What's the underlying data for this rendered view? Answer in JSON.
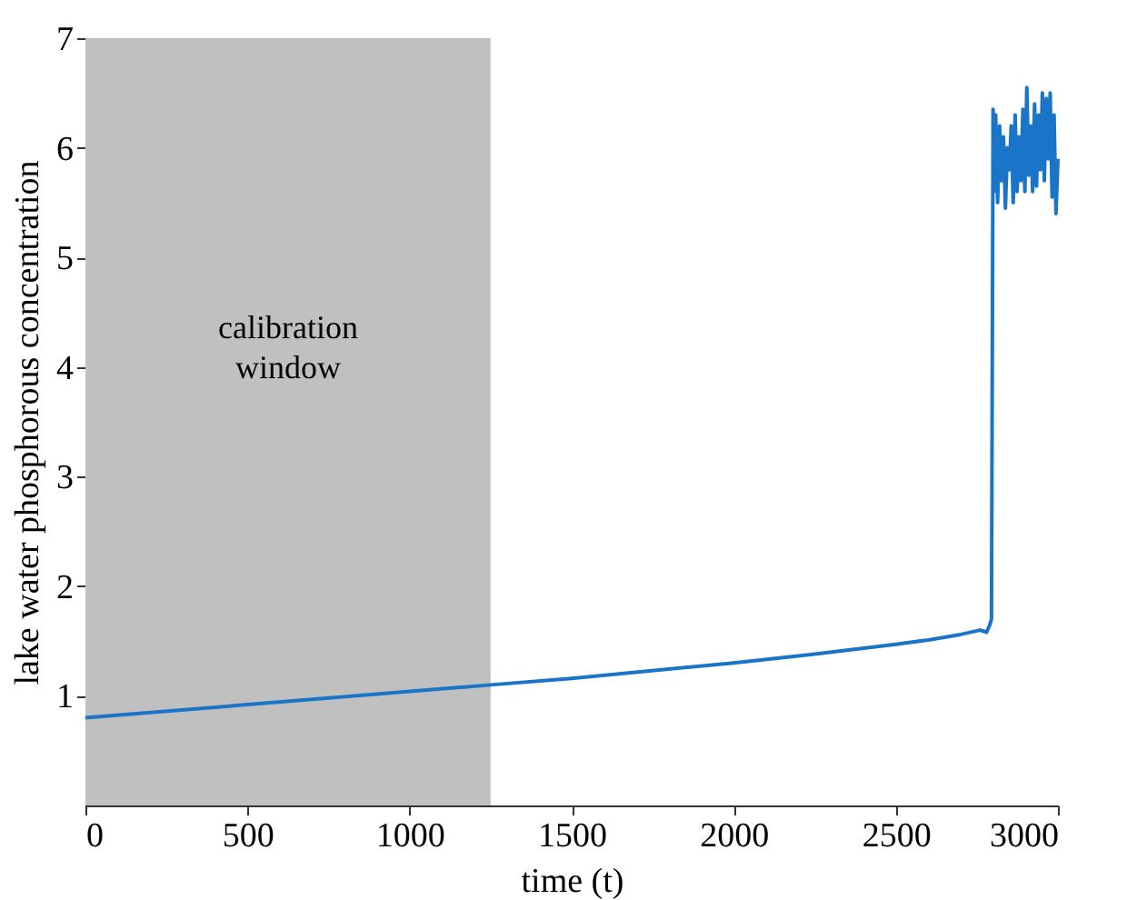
{
  "chart_data": {
    "type": "line",
    "xlabel": "time (t)",
    "ylabel": "lake water phosphorous concentration",
    "xlim": [
      0,
      3000
    ],
    "xticks": [
      0,
      500,
      1000,
      1500,
      2000,
      2500,
      3000
    ],
    "ylim": [
      0,
      7
    ],
    "yticks": [
      1,
      2,
      3,
      4,
      5,
      6,
      7
    ],
    "grid": false,
    "bands": [
      {
        "axis": "x",
        "from": 0,
        "to": 1250,
        "label": "calibration window",
        "color": "#c0c0c0"
      }
    ],
    "series": [
      {
        "color": "#1a75c8",
        "x": [
          0,
          500,
          1000,
          1250,
          1500,
          2000,
          2250,
          2500,
          2600,
          2700,
          2760,
          2780,
          2790,
          2795,
          2800,
          2803,
          2808,
          2814,
          2820,
          2826,
          2832,
          2838,
          2844,
          2850,
          2856,
          2862,
          2868,
          2874,
          2880,
          2886,
          2892,
          2898,
          2904,
          2910,
          2916,
          2922,
          2928,
          2934,
          2940,
          2946,
          2952,
          2958,
          2964,
          2970,
          2976,
          2982,
          2988,
          2994,
          3000
        ],
        "values": [
          0.8,
          0.92,
          1.04,
          1.1,
          1.16,
          1.3,
          1.38,
          1.47,
          1.51,
          1.56,
          1.6,
          1.58,
          1.65,
          1.7,
          6.35,
          5.6,
          6.3,
          5.5,
          6.2,
          5.7,
          6.1,
          5.45,
          6.0,
          5.8,
          6.2,
          5.5,
          6.3,
          5.6,
          6.1,
          5.7,
          6.35,
          5.6,
          6.55,
          5.75,
          6.2,
          5.6,
          6.4,
          5.65,
          6.3,
          5.8,
          6.5,
          5.7,
          6.45,
          5.9,
          6.5,
          5.55,
          6.3,
          5.4,
          5.9
        ]
      }
    ]
  }
}
